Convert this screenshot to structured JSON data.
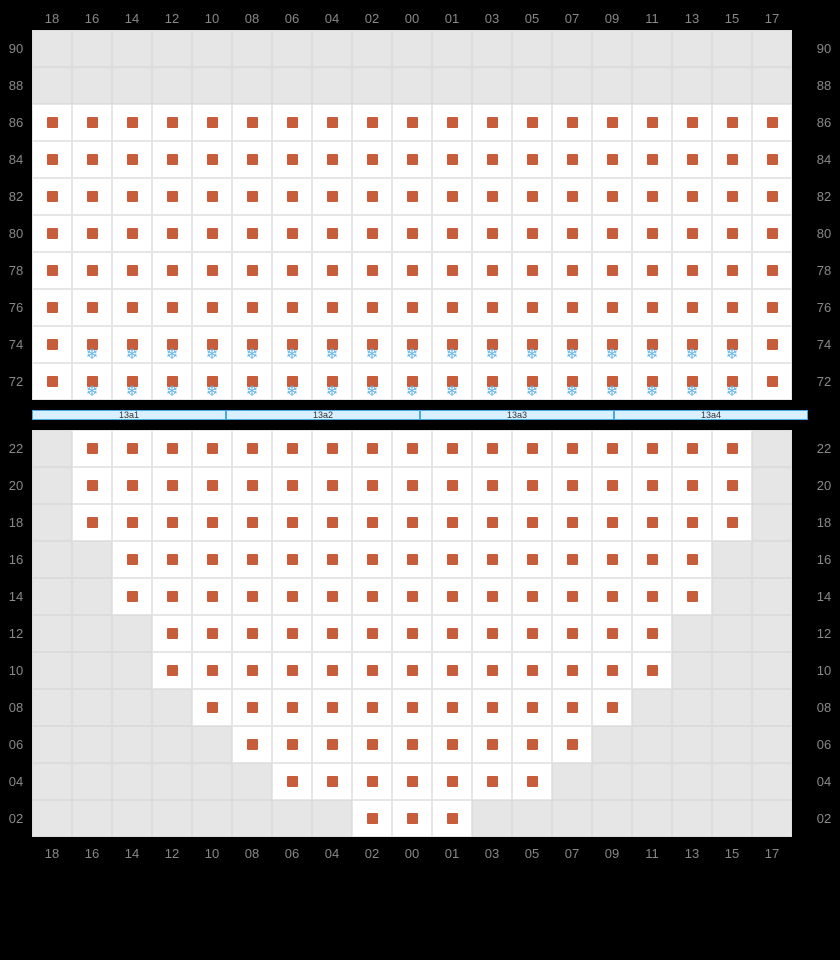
{
  "colors": {
    "seat": "#c75d3a",
    "snow": "#5fb4e8",
    "active_bg": "#ffffff",
    "inactive_bg": "#e6e6e6",
    "grid_line": "#dcdcdc",
    "label": "#888888",
    "table_bg": "#d8f0ff",
    "table_border": "#4aa8e0",
    "background": "#000000"
  },
  "col_labels": [
    "18",
    "16",
    "14",
    "12",
    "10",
    "08",
    "06",
    "04",
    "02",
    "00",
    "01",
    "03",
    "05",
    "07",
    "09",
    "11",
    "13",
    "15",
    "17"
  ],
  "upper": {
    "row_labels": [
      "90",
      "88",
      "86",
      "84",
      "82",
      "80",
      "78",
      "76",
      "74",
      "72"
    ],
    "pattern": [
      "...................",
      "...................",
      "xxxxxxxxxxxxxxxxxxx",
      "xxxxxxxxxxxxxxxxxxx",
      "xxxxxxxxxxxxxxxxxxx",
      "xxxxxxxxxxxxxxxxxxx",
      "xxxxxxxxxxxxxxxxxxx",
      "xxxxxxxxxxxxxxxxxxx",
      "xsssssssssssssssssx",
      "xsssssssssssssssssx"
    ]
  },
  "tables": [
    "13a1",
    "13a2",
    "13a3",
    "13a4"
  ],
  "lower": {
    "row_labels": [
      "22",
      "20",
      "18",
      "16",
      "14",
      "12",
      "10",
      "08",
      "06",
      "04",
      "02"
    ],
    "pattern": [
      ".xxxxxxxxxxxxxxxxx.",
      ".xxxxxxxxxxxxxxxxx.",
      ".xxxxxxxxxxxxxxxxx.",
      "..xxxxxxxxxxxxxxx..",
      "..xxxxxxxxxxxxxxx..",
      "...xxxxxxxxxxxxx...",
      "...xxxxxxxxxxxxx...",
      "....xxxxxxxxxxx....",
      ".....xxxxxxxxx.....",
      "......xxxxxxx......",
      "........xxx........"
    ]
  }
}
